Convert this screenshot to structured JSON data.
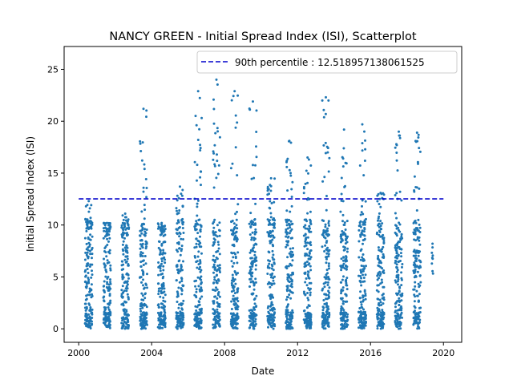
{
  "chart_data": {
    "type": "scatter",
    "title": "NANCY GREEN - Initial Spread Index (ISI), Scatterplot",
    "xlabel": "Date",
    "ylabel": "Initial Spread Index (ISI)",
    "xlim": [
      1999.2,
      2021.0
    ],
    "ylim": [
      -1.3,
      27.2
    ],
    "xticks": [
      2000,
      2004,
      2008,
      2012,
      2016,
      2020
    ],
    "xtick_labels": [
      "2000",
      "2004",
      "2008",
      "2012",
      "2016",
      "2020"
    ],
    "yticks": [
      0,
      5,
      10,
      15,
      20,
      25
    ],
    "ytick_labels": [
      "0",
      "5",
      "10",
      "15",
      "20",
      "25"
    ],
    "grid": false,
    "legend_position": "top-right",
    "point_color": "#1f77b4",
    "threshold": {
      "label": "90th percentile : 12.518957138061525",
      "value": 12.518957138061525,
      "x_range": [
        2000.0,
        2020.0
      ],
      "color": "#0000cc",
      "style": "dashed"
    },
    "seasons": [
      {
        "year": 2000,
        "start": 2000.35,
        "end": 2000.75,
        "max": 12.3
      },
      {
        "year": 2001,
        "start": 2001.35,
        "end": 2001.75,
        "max": 10.2
      },
      {
        "year": 2002,
        "start": 2002.35,
        "end": 2002.75,
        "max": 11.1
      },
      {
        "year": 2003,
        "start": 2003.35,
        "end": 2003.75,
        "max": 21.2
      },
      {
        "year": 2004,
        "start": 2004.35,
        "end": 2004.75,
        "max": 10.2
      },
      {
        "year": 2005,
        "start": 2005.35,
        "end": 2005.75,
        "max": 13.7
      },
      {
        "year": 2006,
        "start": 2006.35,
        "end": 2006.75,
        "max": 22.9
      },
      {
        "year": 2007,
        "start": 2007.35,
        "end": 2007.75,
        "max": 24.0
      },
      {
        "year": 2008,
        "start": 2008.35,
        "end": 2008.75,
        "max": 22.9
      },
      {
        "year": 2009,
        "start": 2009.35,
        "end": 2009.75,
        "max": 21.9
      },
      {
        "year": 2010,
        "start": 2010.35,
        "end": 2010.75,
        "max": 14.5
      },
      {
        "year": 2011,
        "start": 2011.35,
        "end": 2011.75,
        "max": 18.1
      },
      {
        "year": 2012,
        "start": 2012.35,
        "end": 2012.75,
        "max": 16.5
      },
      {
        "year": 2013,
        "start": 2013.35,
        "end": 2013.75,
        "max": 22.3
      },
      {
        "year": 2014,
        "start": 2014.35,
        "end": 2014.75,
        "max": 19.2
      },
      {
        "year": 2015,
        "start": 2015.35,
        "end": 2015.75,
        "max": 19.7
      },
      {
        "year": 2016,
        "start": 2016.35,
        "end": 2016.75,
        "max": 13.1
      },
      {
        "year": 2017,
        "start": 2017.35,
        "end": 2017.75,
        "max": 19.0
      },
      {
        "year": 2018,
        "start": 2018.35,
        "end": 2018.75,
        "max": 18.9
      },
      {
        "year": 2019,
        "start": 2019.35,
        "end": 2019.45,
        "max": 8.2
      }
    ]
  }
}
